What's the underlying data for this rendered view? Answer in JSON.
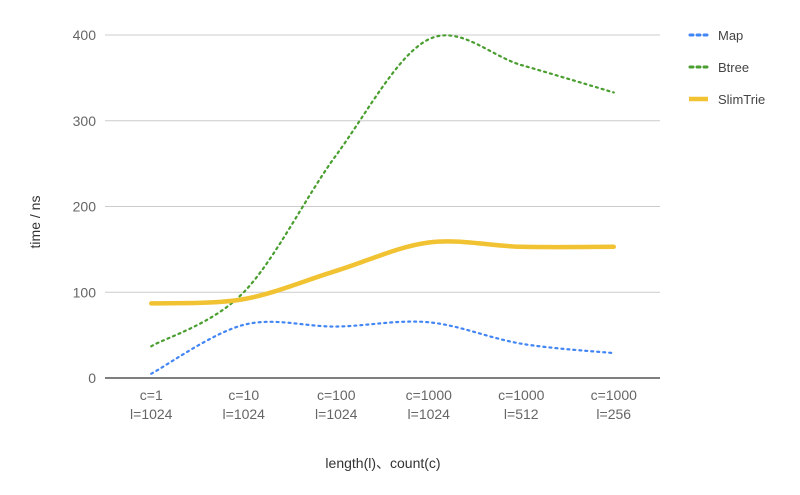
{
  "chart_data": {
    "type": "line",
    "categories": [
      [
        "c=1",
        "l=1024"
      ],
      [
        "c=10",
        "l=1024"
      ],
      [
        "c=100",
        "l=1024"
      ],
      [
        "c=1000",
        "l=1024"
      ],
      [
        "c=1000",
        "l=512"
      ],
      [
        "c=1000",
        "l=256"
      ]
    ],
    "series": [
      {
        "name": "Map",
        "values": [
          5,
          62,
          60,
          65,
          40,
          29
        ],
        "color": "#4285f4",
        "style": "dotted"
      },
      {
        "name": "Btree",
        "values": [
          37,
          100,
          260,
          395,
          365,
          333
        ],
        "color": "#4a9e2f",
        "style": "dotted"
      },
      {
        "name": "SlimTrie",
        "values": [
          87,
          92,
          125,
          158,
          153,
          153
        ],
        "color": "#f1c232",
        "style": "solid"
      }
    ],
    "xlabel": "length(l)、count(c)",
    "ylabel": "time / ns",
    "ylim": [
      0,
      400
    ],
    "yticks": [
      0,
      100,
      200,
      300,
      400
    ],
    "grid": true,
    "legend": "right"
  }
}
